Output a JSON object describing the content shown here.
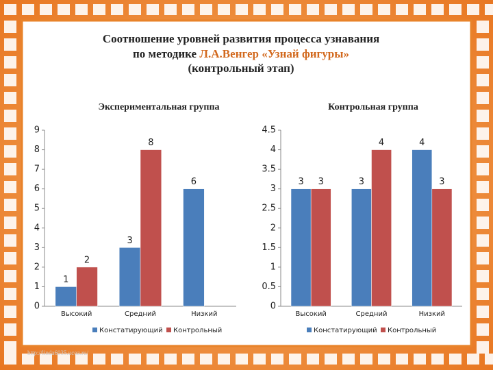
{
  "title": {
    "line1": "Соотношение уровней развития процесса узнавания",
    "line2a": "по методике ",
    "line2b": "Л.А.Венгер «Узнай фигуры»",
    "line3": "(контрольный этап)"
  },
  "watermark": "http://linda6035.ucoz.ru/",
  "chart_data": [
    {
      "type": "bar",
      "title": "Экспериментальная группа",
      "categories": [
        "Высокий",
        "Средний",
        "Низкий"
      ],
      "series": [
        {
          "name": "Констатирующий",
          "color": "#4a7ebb",
          "values": [
            1,
            3,
            6
          ]
        },
        {
          "name": "Контрольный",
          "color": "#c0504d",
          "values": [
            2,
            8,
            null
          ]
        }
      ],
      "ylim": [
        0,
        9
      ],
      "yticks": [
        0,
        1,
        2,
        3,
        4,
        5,
        6,
        7,
        8,
        9
      ],
      "grid": false,
      "legend": "bottom"
    },
    {
      "type": "bar",
      "title": "Контрольная группа",
      "categories": [
        "Высокий",
        "Средний",
        "Низкий"
      ],
      "series": [
        {
          "name": "Констатирующий",
          "color": "#4a7ebb",
          "values": [
            3,
            3,
            4
          ]
        },
        {
          "name": "Контрольный",
          "color": "#c0504d",
          "values": [
            3,
            4,
            3
          ]
        }
      ],
      "ylim": [
        0,
        4.5
      ],
      "yticks": [
        0,
        0.5,
        1,
        1.5,
        2,
        2.5,
        3,
        3.5,
        4,
        4.5
      ],
      "grid": false,
      "legend": "bottom"
    }
  ]
}
